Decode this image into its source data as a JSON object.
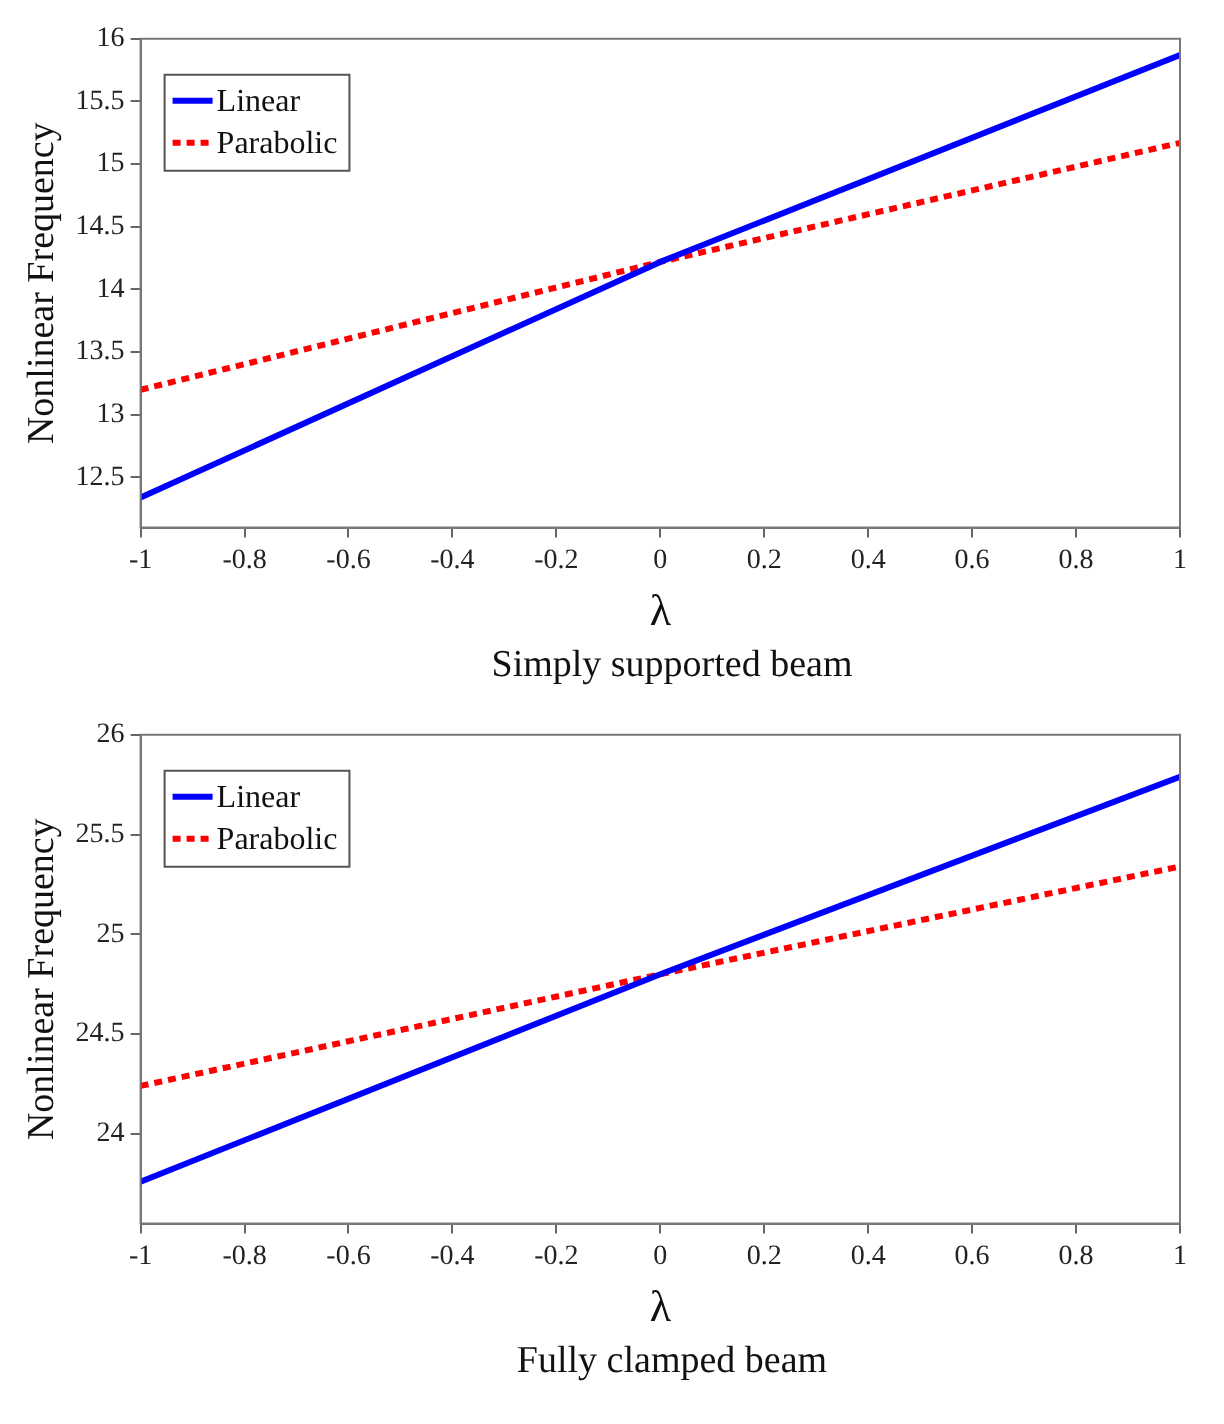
{
  "chart_data": [
    {
      "type": "line",
      "xlabel": "λ",
      "ylabel": "Nonlinear Frequency",
      "annotations": [
        "Simply supported beam"
      ],
      "xlim": [
        -1,
        1
      ],
      "xticks": [
        -1,
        -0.8,
        -0.6,
        -0.4,
        -0.2,
        0,
        0.2,
        0.4,
        0.6,
        0.8,
        1
      ],
      "ylim": [
        12.1,
        16
      ],
      "yticks": [
        12.5,
        13,
        13.5,
        14,
        14.5,
        15,
        15.5,
        16
      ],
      "grid": false,
      "legend": "top left",
      "marker": "none",
      "series": [
        {
          "name": "Linear",
          "color": "#0000ff",
          "line_style": "solid",
          "x": [
            -1,
            0,
            1
          ],
          "values": [
            12.34,
            14.22,
            15.87
          ]
        },
        {
          "name": "Parabolic",
          "color": "#ff0000",
          "line_style": "dotted",
          "x": [
            -1,
            0,
            1
          ],
          "values": [
            13.2,
            14.22,
            15.17
          ]
        }
      ]
    },
    {
      "type": "line",
      "xlabel": "λ",
      "ylabel": "Nonlinear Frequency",
      "annotations": [
        "Fully clamped beam"
      ],
      "xlim": [
        -1,
        1
      ],
      "xticks": [
        -1,
        -0.8,
        -0.6,
        -0.4,
        -0.2,
        0,
        0.2,
        0.4,
        0.6,
        0.8,
        1
      ],
      "ylim": [
        23.55,
        26
      ],
      "yticks": [
        24,
        24.5,
        25,
        25.5,
        26
      ],
      "grid": false,
      "legend": "top left",
      "marker": "none",
      "series": [
        {
          "name": "Linear",
          "color": "#0000ff",
          "line_style": "solid",
          "x": [
            -1,
            0,
            1
          ],
          "values": [
            23.76,
            24.8,
            25.79
          ]
        },
        {
          "name": "Parabolic",
          "color": "#ff0000",
          "line_style": "dotted",
          "x": [
            -1,
            0,
            1
          ],
          "values": [
            24.24,
            24.8,
            25.34
          ]
        }
      ]
    }
  ]
}
